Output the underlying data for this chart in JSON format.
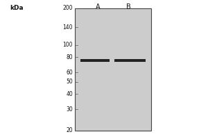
{
  "background_color": "#ffffff",
  "gel_bg_color": "#cccccc",
  "gel_border_color": "#444444",
  "lane_labels": [
    "A",
    "B"
  ],
  "kda_label": "kDa",
  "markers": [
    200,
    140,
    100,
    80,
    60,
    50,
    40,
    30,
    20
  ],
  "band_color": "#222222",
  "band_alpha": 1.0,
  "fig_width": 3.0,
  "fig_height": 2.0,
  "dpi": 100
}
